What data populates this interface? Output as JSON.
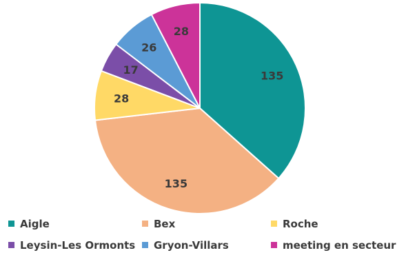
{
  "chart_data": {
    "type": "pie",
    "title": "",
    "slices": [
      {
        "label": "Aigle",
        "value": 135,
        "color": "#0e9594"
      },
      {
        "label": "Bex",
        "value": 135,
        "color": "#f4b183"
      },
      {
        "label": "Roche",
        "value": 28,
        "color": "#ffd966"
      },
      {
        "label": "Leysin-Les Ormonts",
        "value": 17,
        "color": "#7b4ea8"
      },
      {
        "label": "Gryon-Villars",
        "value": 26,
        "color": "#5b9bd5"
      },
      {
        "label": "meeting en secteur",
        "value": 28,
        "color": "#cc3399"
      }
    ],
    "start_angle_deg": 0,
    "direction": "clockwise",
    "legend_position": "bottom"
  }
}
